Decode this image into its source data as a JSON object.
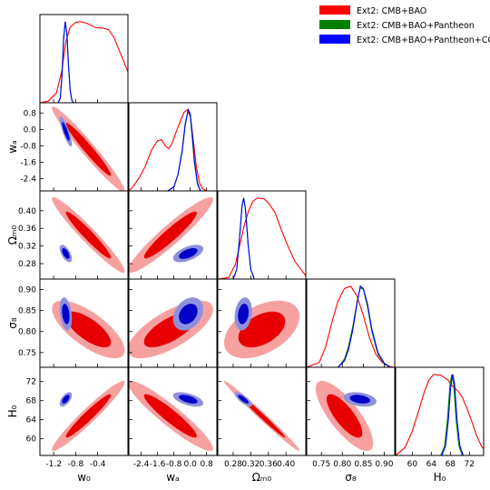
{
  "chart_data": {
    "type": "triangle-plot",
    "parameters": [
      {
        "key": "w0",
        "label": "w₀",
        "range": [
          -1.45,
          0.15
        ],
        "ticks": [
          "-1.2",
          "-0.8",
          "-0.4"
        ],
        "tick_values": [
          -1.2,
          -0.8,
          -0.4
        ]
      },
      {
        "key": "wa",
        "label": "wₐ",
        "range": [
          -3.0,
          1.3
        ],
        "ticks": [
          "-2.4",
          "-1.6",
          "-0.8",
          "0.0",
          "0.8"
        ],
        "tick_values": [
          -2.4,
          -1.6,
          -0.8,
          0.0,
          0.8
        ]
      },
      {
        "key": "Om0",
        "label": "Ωₘ₀",
        "range": [
          0.245,
          0.445
        ],
        "ticks": [
          "0.28",
          "0.32",
          "0.36",
          "0.40"
        ],
        "tick_values": [
          0.28,
          0.32,
          0.36,
          0.4
        ]
      },
      {
        "key": "s8",
        "label": "σ₈",
        "range": [
          0.715,
          0.925
        ],
        "ticks": [
          "0.75",
          "0.80",
          "0.85",
          "0.90"
        ],
        "tick_values": [
          0.75,
          0.8,
          0.85,
          0.9
        ]
      },
      {
        "key": "H0",
        "label": "H₀",
        "range": [
          56.5,
          75.0
        ],
        "ticks": [
          "60",
          "64",
          "68",
          "72"
        ],
        "tick_values": [
          60,
          64,
          68,
          72
        ]
      }
    ],
    "series": [
      {
        "name": "Ext2: CMB+BAO",
        "color": "#ff0000",
        "light": "#f7a0a0",
        "dark": "#e80000",
        "means": [
          -0.57,
          -0.97,
          0.345,
          0.805,
          64.8
        ],
        "sigmas": [
          0.27,
          0.85,
          0.035,
          0.028,
          3.0
        ],
        "corr": [
          [
            1,
            -0.97,
            -0.96,
            -0.72,
            0.96
          ],
          [
            -0.97,
            1,
            0.94,
            0.7,
            -0.93
          ],
          [
            -0.96,
            0.94,
            1,
            0.45,
            -0.99
          ],
          [
            -0.72,
            0.7,
            0.45,
            1,
            -0.78
          ],
          [
            0.96,
            -0.93,
            -0.99,
            -0.78,
            1
          ]
        ],
        "marginals": [
          {
            "x": [
              -1.45,
              -1.3,
              -1.15,
              -1.05,
              -0.98,
              -0.9,
              -0.8,
              -0.72,
              -0.6,
              -0.45,
              -0.3,
              -0.2,
              -0.1,
              0.05,
              0.15
            ],
            "y": [
              0,
              0.02,
              0.12,
              0.4,
              0.75,
              0.93,
              0.99,
              1.0,
              0.98,
              0.93,
              0.92,
              0.9,
              0.8,
              0.55,
              0.38
            ]
          },
          {
            "x": [
              -3.0,
              -2.8,
              -2.5,
              -2.2,
              -1.9,
              -1.6,
              -1.4,
              -1.2,
              -1.05,
              -0.9,
              -0.7,
              -0.5,
              -0.3,
              -0.15,
              0.0,
              0.15,
              0.3,
              0.45,
              0.6,
              0.8,
              1.3
            ],
            "y": [
              0.0,
              0.05,
              0.16,
              0.3,
              0.5,
              0.62,
              0.63,
              0.55,
              0.52,
              0.58,
              0.72,
              0.85,
              0.97,
              1.0,
              0.92,
              0.62,
              0.3,
              0.1,
              0.03,
              0.0,
              0.0
            ]
          },
          {
            "x": [
              0.245,
              0.27,
              0.285,
              0.295,
              0.305,
              0.315,
              0.325,
              0.335,
              0.35,
              0.36,
              0.375,
              0.39,
              0.405,
              0.42,
              0.445
            ],
            "y": [
              0.0,
              0.02,
              0.18,
              0.42,
              0.66,
              0.84,
              0.96,
              1.0,
              0.99,
              0.94,
              0.82,
              0.6,
              0.4,
              0.22,
              0.04
            ]
          },
          {
            "x": [
              0.715,
              0.745,
              0.76,
              0.775,
              0.79,
              0.805,
              0.82,
              0.835,
              0.85,
              0.865,
              0.88,
              0.895,
              0.91,
              0.925
            ],
            "y": [
              0.0,
              0.06,
              0.25,
              0.55,
              0.82,
              0.97,
              1.0,
              0.88,
              0.64,
              0.36,
              0.16,
              0.06,
              0.01,
              0.0
            ]
          },
          {
            "x": [
              56.5,
              58.5,
              60.0,
              61.5,
              62.5,
              63.5,
              64.5,
              66.0,
              67.5,
              68.5,
              69.5,
              70.5,
              71.5,
              72.5,
              73.5,
              74.5,
              75.0
            ],
            "y": [
              0.0,
              0.1,
              0.3,
              0.58,
              0.78,
              0.93,
              1.0,
              0.99,
              0.93,
              0.85,
              0.8,
              0.72,
              0.58,
              0.42,
              0.25,
              0.12,
              0.08
            ]
          }
        ]
      },
      {
        "name": "Ext2: CMB+BAO+Pantheon",
        "color": "#008000",
        "light": "#8fc48f",
        "dark": "#007000",
        "means": [
          -0.98,
          -0.1,
          0.303,
          0.842,
          68.2
        ],
        "sigmas": [
          0.045,
          0.3,
          0.008,
          0.016,
          0.6
        ],
        "corr": [
          [
            1,
            -0.85,
            -0.6,
            -0.3,
            0.6
          ],
          [
            -0.85,
            1,
            0.55,
            0.3,
            -0.55
          ],
          [
            -0.6,
            0.55,
            1,
            0.2,
            -0.8
          ],
          [
            -0.3,
            0.3,
            0.2,
            1,
            -0.3
          ],
          [
            0.6,
            -0.55,
            -0.8,
            -0.3,
            1
          ]
        ],
        "marginals": [
          {
            "x": [
              -1.12,
              -1.08,
              -1.05,
              -1.02,
              -0.99,
              -0.96,
              -0.93,
              -0.9,
              -0.87,
              -0.84
            ],
            "y": [
              0.0,
              0.06,
              0.35,
              0.8,
              1.0,
              0.85,
              0.45,
              0.15,
              0.03,
              0.0
            ]
          },
          {
            "x": [
              -1.1,
              -0.8,
              -0.6,
              -0.4,
              -0.25,
              -0.1,
              0.0,
              0.1,
              0.2,
              0.35,
              0.5
            ],
            "y": [
              0.0,
              0.05,
              0.2,
              0.5,
              0.82,
              1.0,
              0.92,
              0.65,
              0.35,
              0.08,
              0.0
            ]
          },
          {
            "x": [
              0.28,
              0.288,
              0.295,
              0.3,
              0.304,
              0.308,
              0.314,
              0.32,
              0.328
            ],
            "y": [
              0.0,
              0.12,
              0.55,
              0.9,
              1.0,
              0.85,
              0.42,
              0.12,
              0.0
            ]
          },
          {
            "x": [
              0.79,
              0.805,
              0.815,
              0.825,
              0.835,
              0.843,
              0.85,
              0.86,
              0.87,
              0.885,
              0.9,
              0.915
            ],
            "y": [
              0.0,
              0.1,
              0.26,
              0.5,
              0.8,
              0.98,
              0.96,
              0.75,
              0.45,
              0.16,
              0.04,
              0.0
            ]
          },
          {
            "x": [
              66.0,
              66.8,
              67.4,
              67.9,
              68.3,
              68.7,
              69.2,
              69.8,
              70.5
            ],
            "y": [
              0.0,
              0.12,
              0.45,
              0.86,
              1.0,
              0.88,
              0.45,
              0.12,
              0.0
            ]
          }
        ]
      },
      {
        "name": "Ext2: CMB+BAO+Pantheon+CC",
        "color": "#0000ff",
        "light": "#8f8fe0",
        "dark": "#0000c8",
        "means": [
          -0.98,
          -0.1,
          0.303,
          0.842,
          68.3
        ],
        "sigmas": [
          0.045,
          0.3,
          0.008,
          0.016,
          0.6
        ],
        "corr": [
          [
            1,
            -0.85,
            -0.6,
            -0.3,
            0.6
          ],
          [
            -0.85,
            1,
            0.55,
            0.3,
            -0.55
          ],
          [
            -0.6,
            0.55,
            1,
            0.2,
            -0.8
          ],
          [
            -0.3,
            0.3,
            0.2,
            1,
            -0.3
          ],
          [
            0.6,
            -0.55,
            -0.8,
            -0.3,
            1
          ]
        ],
        "marginals": [
          {
            "x": [
              -1.12,
              -1.08,
              -1.05,
              -1.02,
              -0.99,
              -0.96,
              -0.93,
              -0.9,
              -0.87,
              -0.84
            ],
            "y": [
              0.0,
              0.05,
              0.33,
              0.78,
              1.0,
              0.86,
              0.46,
              0.16,
              0.03,
              0.0
            ]
          },
          {
            "x": [
              -1.1,
              -0.8,
              -0.6,
              -0.4,
              -0.25,
              -0.1,
              0.0,
              0.1,
              0.2,
              0.35,
              0.5
            ],
            "y": [
              0.0,
              0.05,
              0.2,
              0.48,
              0.8,
              1.0,
              0.95,
              0.7,
              0.38,
              0.1,
              0.0
            ]
          },
          {
            "x": [
              0.28,
              0.288,
              0.295,
              0.3,
              0.304,
              0.308,
              0.314,
              0.32,
              0.328
            ],
            "y": [
              0.0,
              0.12,
              0.55,
              0.9,
              1.0,
              0.85,
              0.42,
              0.12,
              0.0
            ]
          },
          {
            "x": [
              0.79,
              0.805,
              0.815,
              0.825,
              0.835,
              0.843,
              0.85,
              0.86,
              0.87,
              0.885,
              0.9,
              0.915
            ],
            "y": [
              0.0,
              0.08,
              0.22,
              0.46,
              0.78,
              1.0,
              0.97,
              0.78,
              0.48,
              0.18,
              0.05,
              0.0
            ]
          },
          {
            "x": [
              66.2,
              67.0,
              67.6,
              68.1,
              68.5,
              68.9,
              69.4,
              70.0,
              70.7
            ],
            "y": [
              0.0,
              0.12,
              0.45,
              0.86,
              1.0,
              0.88,
              0.45,
              0.12,
              0.0
            ]
          }
        ]
      }
    ],
    "legend": {
      "position": "top-right",
      "entries": [
        "Ext2: CMB+BAO",
        "Ext2: CMB+BAO+Pantheon",
        "Ext2: CMB+BAO+Pantheon+CC"
      ]
    },
    "contour_levels": [
      "68%",
      "95%"
    ],
    "grid": false
  }
}
